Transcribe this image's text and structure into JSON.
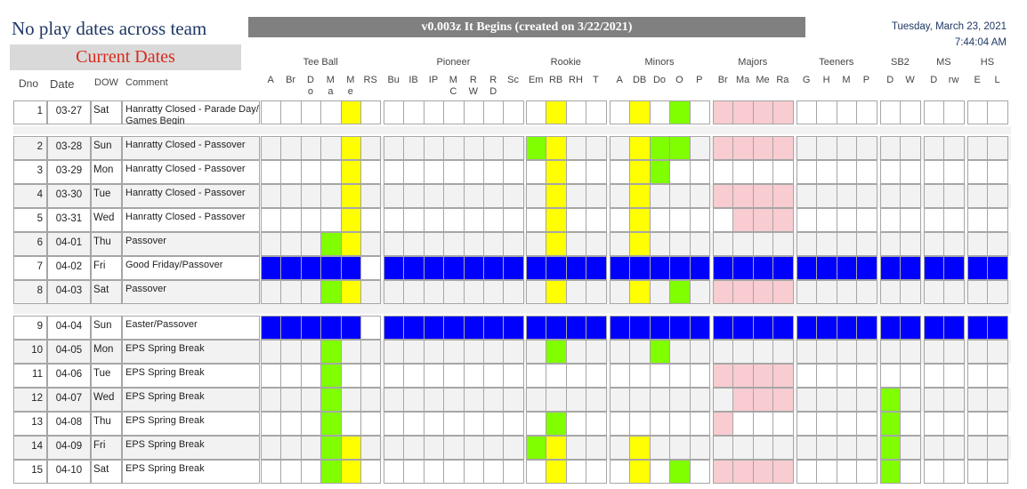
{
  "header": {
    "title": "No play dates across team",
    "current_label": "Current Dates",
    "version": "v0.003z It Begins (created on 3/22/2021)",
    "date": "Tuesday, March 23, 2021",
    "time": "7:44:04 AM"
  },
  "columns": {
    "dno": "Dno",
    "date": "Date",
    "dow": "DOW",
    "comment": "Comment"
  },
  "groups": [
    {
      "name": "Tee Ball",
      "subs": [
        [
          "A"
        ],
        [
          "Br"
        ],
        [
          "D",
          "o"
        ],
        [
          "M",
          "a"
        ],
        [
          "M",
          "e"
        ],
        [
          "RS"
        ]
      ]
    },
    {
      "name": "Pioneer",
      "subs": [
        [
          "Bu"
        ],
        [
          "IB"
        ],
        [
          "IP"
        ],
        [
          "M",
          "C"
        ],
        [
          "R",
          "W"
        ],
        [
          "R",
          "D"
        ],
        [
          "Sc"
        ]
      ]
    },
    {
      "name": "Rookie",
      "subs": [
        [
          "Em"
        ],
        [
          "RB"
        ],
        [
          "RH"
        ],
        [
          "T"
        ]
      ]
    },
    {
      "name": "Minors",
      "subs": [
        [
          "A"
        ],
        [
          "DB"
        ],
        [
          "Do"
        ],
        [
          "O"
        ],
        [
          "P"
        ]
      ]
    },
    {
      "name": "Majors",
      "subs": [
        [
          "Br"
        ],
        [
          "Ma"
        ],
        [
          "Me"
        ],
        [
          "Ra"
        ]
      ]
    },
    {
      "name": "Teeners",
      "subs": [
        [
          "G"
        ],
        [
          "H"
        ],
        [
          "M"
        ],
        [
          "P"
        ]
      ]
    },
    {
      "name": "SB2",
      "subs": [
        [
          "D"
        ],
        [
          "W"
        ]
      ]
    },
    {
      "name": "MS",
      "subs": [
        [
          "D"
        ],
        [
          "rw"
        ]
      ]
    },
    {
      "name": "HS",
      "subs": [
        [
          "E"
        ],
        [
          "L"
        ]
      ]
    }
  ],
  "colors": {
    "green": "#80ff00",
    "yellow": "#ffff00",
    "blue": "#0000ff",
    "pink": "#f8ccd1",
    "band": "#f2f2f2",
    "title": "#1f3864",
    "red": "#d9291c"
  },
  "rows": [
    {
      "dno": "1",
      "date": "03-27",
      "dow": "Sat",
      "comment": "Hanratty Closed - Parade Day/ Games Begin",
      "cells": "....Y.|.......|.Y..|.Y.G.|PPPP|....|..|..|.."
    },
    {
      "dno": "2",
      "date": "03-28",
      "dow": "Sun",
      "comment": "Hanratty Closed - Passover",
      "cells": "....Y.|.......|GY..|.YGG.|PPPP|....|..|..|.."
    },
    {
      "dno": "3",
      "date": "03-29",
      "dow": "Mon",
      "comment": "Hanratty Closed - Passover",
      "cells": "....Y.|.......|.Y..|.YG..|....|....|..|..|.."
    },
    {
      "dno": "4",
      "date": "03-30",
      "dow": "Tue",
      "comment": "Hanratty Closed - Passover",
      "cells": "....Y.|.......|.Y..|.Y...|PPPP|....|..|..|.."
    },
    {
      "dno": "5",
      "date": "03-31",
      "dow": "Wed",
      "comment": "Hanratty Closed - Passover",
      "cells": "....Y.|.......|.Y..|.Y...|.PPP|....|..|..|.."
    },
    {
      "dno": "6",
      "date": "04-01",
      "dow": "Thu",
      "comment": "Passover",
      "cells": "...GY.|.......|.Y..|.Y...|....|....|..|..|.."
    },
    {
      "dno": "7",
      "date": "04-02",
      "dow": "Fri",
      "comment": "Good Friday/Passover",
      "cells": "BBBBB.|BBBBBBB|BBBB|BBBBB|BBBB|BBBB|BB|BB|BB"
    },
    {
      "dno": "8",
      "date": "04-03",
      "dow": "Sat",
      "comment": "Passover",
      "cells": "...GY.|.......|.Y..|.Y.G.|PPPP|....|..|..|.."
    },
    {
      "dno": "9",
      "date": "04-04",
      "dow": "Sun",
      "comment": "Easter/Passover",
      "cells": "BBBBB.|BBBBBBB|BBBB|BBBBB|BBBB|BBBB|BB|BB|BB"
    },
    {
      "dno": "10",
      "date": "04-05",
      "dow": "Mon",
      "comment": "EPS Spring Break",
      "cells": "...G..|.......|.G..|..G..|....|....|..|..|.."
    },
    {
      "dno": "11",
      "date": "04-06",
      "dow": "Tue",
      "comment": "EPS Spring Break",
      "cells": "...G..|.......|....|.....|PPPP|....|..|..|.."
    },
    {
      "dno": "12",
      "date": "04-07",
      "dow": "Wed",
      "comment": "EPS Spring Break",
      "cells": "...G..|.......|....|.....|.PPP|....|G.|..|.."
    },
    {
      "dno": "13",
      "date": "04-08",
      "dow": "Thu",
      "comment": "EPS Spring Break",
      "cells": "...G..|.......|.G..|.....|P...|....|G.|..|.."
    },
    {
      "dno": "14",
      "date": "04-09",
      "dow": "Fri",
      "comment": "EPS Spring Break",
      "cells": "...GY.|.......|GY..|.Y...|....|....|G.|..|.."
    },
    {
      "dno": "15",
      "date": "04-10",
      "dow": "Sat",
      "comment": "EPS Spring Break",
      "cells": "...GY.|.......|.Y..|.Y.G.|PPPP|....|G.|..|.."
    }
  ]
}
